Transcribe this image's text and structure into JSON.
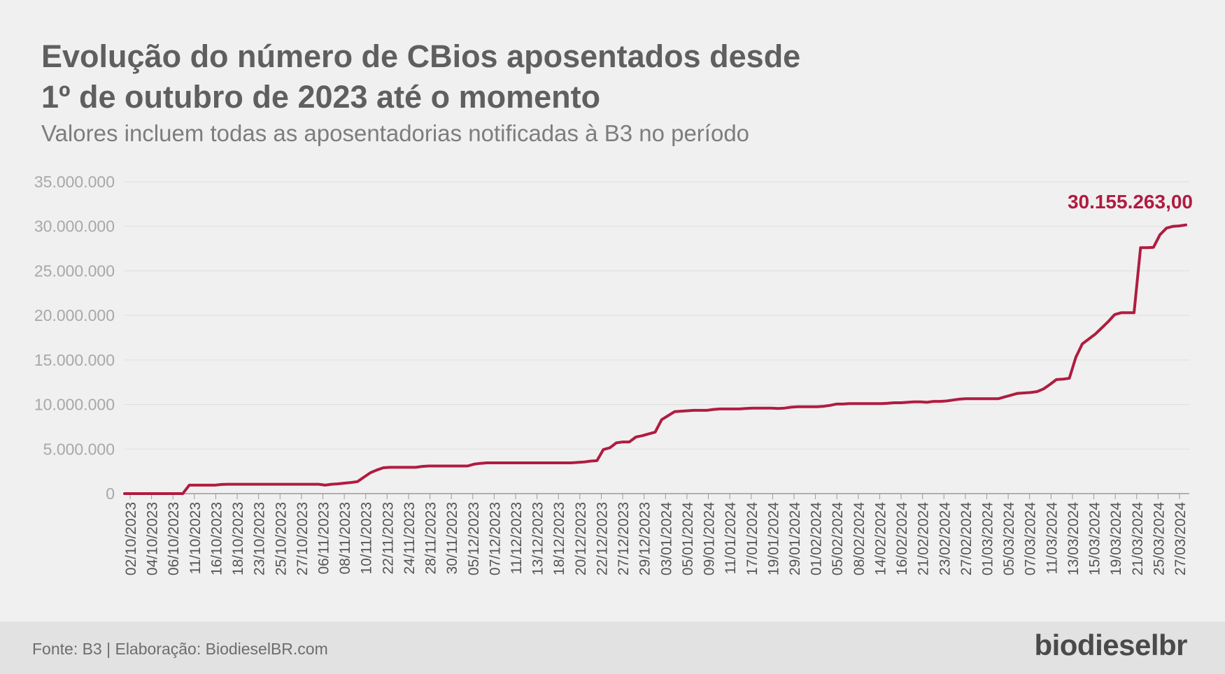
{
  "title_line1": "Evolução do número de CBios aposentados desde",
  "title_line2": "1º de outubro de 2023 até o momento",
  "subtitle": "Valores incluem todas as aposentadorias notificadas à B3 no período",
  "source": "Fonte: B3 | Elaboração: BiodieselBR.com",
  "logo_text": "biodieselbr",
  "colors": {
    "line": "#b01c40",
    "background": "#f0f0f0",
    "footer": "#e2e2e2",
    "grid": "#dedede"
  },
  "chart_data": {
    "type": "line",
    "title": "Evolução do número de CBios aposentados desde 1º de outubro de 2023 até o momento",
    "subtitle": "Valores incluem todas as aposentadorias notificadas à B3 no período",
    "xlabel": "",
    "ylabel": "",
    "ylim": [
      0,
      35000000
    ],
    "grid": true,
    "y_ticks": [
      {
        "value": 0,
        "label": "0"
      },
      {
        "value": 5000000,
        "label": "5.000.000"
      },
      {
        "value": 10000000,
        "label": "10.000.000"
      },
      {
        "value": 15000000,
        "label": "15.000.000"
      },
      {
        "value": 20000000,
        "label": "20.000.000"
      },
      {
        "value": 25000000,
        "label": "25.000.000"
      },
      {
        "value": 30000000,
        "label": "30.000.000"
      },
      {
        "value": 35000000,
        "label": "35.000.000"
      }
    ],
    "x_tick_labels": [
      "02/10/2023",
      "04/10/2023",
      "06/10/2023",
      "11/10/2023",
      "16/10/2023",
      "18/10/2023",
      "23/10/2023",
      "25/10/2023",
      "27/10/2023",
      "06/11/2023",
      "08/11/2023",
      "10/11/2023",
      "22/11/2023",
      "24/11/2023",
      "28/11/2023",
      "30/11/2023",
      "05/12/2023",
      "07/12/2023",
      "11/12/2023",
      "13/12/2023",
      "18/12/2023",
      "20/12/2023",
      "22/12/2023",
      "27/12/2023",
      "29/12/2023",
      "03/01/2024",
      "05/01/2024",
      "09/01/2024",
      "11/01/2024",
      "17/01/2024",
      "19/01/2024",
      "29/01/2024",
      "01/02/2024",
      "05/02/2024",
      "08/02/2024",
      "14/02/2024",
      "16/02/2024",
      "21/02/2024",
      "23/02/2024",
      "27/02/2024",
      "01/03/2024",
      "05/03/2024",
      "07/03/2024",
      "11/03/2024",
      "13/03/2024",
      "15/03/2024",
      "19/03/2024",
      "21/03/2024",
      "25/03/2024",
      "27/03/2024"
    ],
    "series": [
      {
        "values": [
          0,
          0,
          0,
          0,
          0,
          0,
          0,
          0,
          0,
          0,
          950000,
          950000,
          950000,
          950000,
          950000,
          1030000,
          1050000,
          1050000,
          1050000,
          1050000,
          1050000,
          1050000,
          1050000,
          1050000,
          1050000,
          1050000,
          1050000,
          1050000,
          1050000,
          1050000,
          1050000,
          950000,
          1050000,
          1100000,
          1180000,
          1250000,
          1350000,
          1850000,
          2350000,
          2650000,
          2900000,
          2950000,
          2950000,
          2950000,
          2950000,
          2950000,
          3050000,
          3100000,
          3100000,
          3100000,
          3100000,
          3100000,
          3100000,
          3100000,
          3300000,
          3400000,
          3450000,
          3450000,
          3450000,
          3450000,
          3450000,
          3450000,
          3450000,
          3450000,
          3450000,
          3450000,
          3450000,
          3450000,
          3450000,
          3450000,
          3500000,
          3550000,
          3650000,
          3700000,
          4950000,
          5150000,
          5700000,
          5800000,
          5800000,
          6350000,
          6500000,
          6700000,
          6900000,
          8300000,
          8750000,
          9200000,
          9250000,
          9300000,
          9350000,
          9350000,
          9350000,
          9450000,
          9500000,
          9500000,
          9500000,
          9500000,
          9550000,
          9600000,
          9600000,
          9600000,
          9600000,
          9550000,
          9600000,
          9700000,
          9750000,
          9750000,
          9750000,
          9750000,
          9800000,
          9900000,
          10050000,
          10050000,
          10100000,
          10100000,
          10100000,
          10100000,
          10100000,
          10100000,
          10150000,
          10200000,
          10200000,
          10250000,
          10300000,
          10300000,
          10250000,
          10350000,
          10350000,
          10400000,
          10500000,
          10600000,
          10650000,
          10650000,
          10650000,
          10650000,
          10650000,
          10650000,
          10850000,
          11050000,
          11250000,
          11300000,
          11350000,
          11450000,
          11750000,
          12250000,
          12800000,
          12850000,
          12950000,
          15300000,
          16800000,
          17350000,
          17900000,
          18600000,
          19300000,
          20100000,
          20300000,
          20300000,
          20300000,
          27600000,
          27600000,
          27650000,
          29050000,
          29800000,
          30000000,
          30050000,
          30155263
        ],
        "end_label": "30.155.263,00"
      }
    ]
  }
}
